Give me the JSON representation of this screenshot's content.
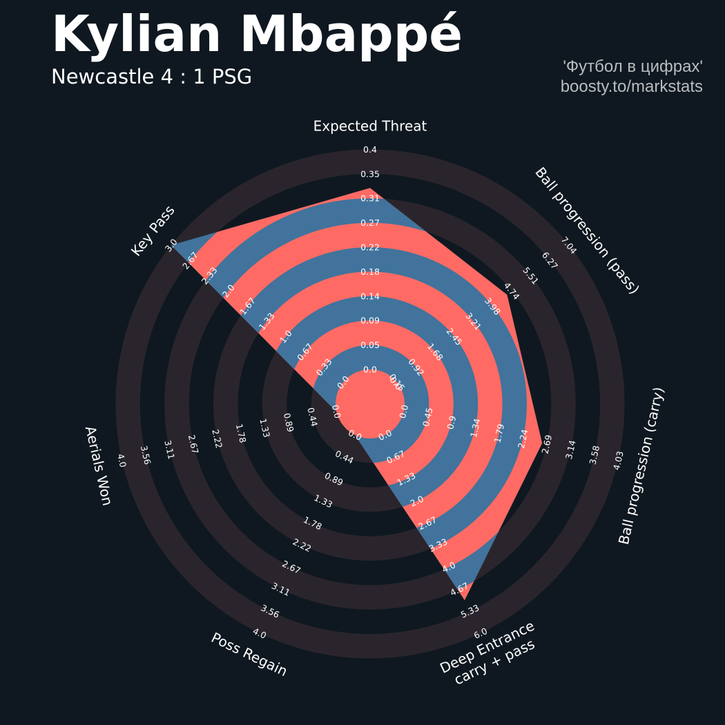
{
  "header": {
    "title": "Kylian Mbappé",
    "subtitle": "Newcastle 4 : 1 PSG",
    "credit_line1": "'Футбол в цифрах'",
    "credit_line2": "boosty.to/markstats"
  },
  "colors": {
    "background": "#0f1820",
    "ring_dark": "#2a252c",
    "ring_light": "#0f1820",
    "player_fill": "#ff6b64",
    "player_ring_alt": "#41739c",
    "text": "#ffffff"
  },
  "chart_data": {
    "type": "radar",
    "title": "Kylian Mbappé",
    "params": [
      {
        "label": [
          "Expected Threat"
        ],
        "min": 0.0,
        "max": 0.4,
        "value": 0.33,
        "ticks": [
          "0.0",
          "0.05",
          "0.09",
          "0.14",
          "0.18",
          "0.22",
          "0.27",
          "0.31",
          "0.35",
          "0.4"
        ]
      },
      {
        "label": [
          "Ball progression (pass)"
        ],
        "min": 0.0,
        "max": 7.04,
        "value": 4.5,
        "ticks": [
          "0.0",
          "0.15",
          "0.92",
          "1.68",
          "2.45",
          "3.21",
          "3.98",
          "4.74",
          "5.51",
          "6.27",
          "7.04"
        ]
      },
      {
        "label": [
          "Ball progression (carry)"
        ],
        "min": 0.0,
        "max": 4.03,
        "value": 2.6,
        "ticks": [
          "0.0",
          "0.45",
          "0.9",
          "1.34",
          "1.79",
          "2.24",
          "2.69",
          "3.14",
          "3.58",
          "4.03"
        ]
      },
      {
        "label": [
          "Deep Entrance",
          "carry + pass"
        ],
        "min": 0.0,
        "max": 6.0,
        "value": 5.0,
        "ticks": [
          "0.0",
          "0.67",
          "1.33",
          "2.0",
          "2.67",
          "3.33",
          "4.0",
          "4.67",
          "5.33",
          "6.0"
        ]
      },
      {
        "label": [
          "Poss Regain"
        ],
        "min": 0.0,
        "max": 4.0,
        "value": 0.0,
        "ticks": [
          "0.0",
          "0.44",
          "0.89",
          "1.33",
          "1.78",
          "2.22",
          "2.67",
          "3.11",
          "3.56",
          "4.0"
        ]
      },
      {
        "label": [
          "Aerials Won"
        ],
        "min": 0.0,
        "max": 4.0,
        "value": 0.0,
        "ticks": [
          "0.0",
          "0.44",
          "0.89",
          "1.33",
          "1.78",
          "2.22",
          "2.67",
          "3.11",
          "3.56",
          "4.0"
        ]
      },
      {
        "label": [
          "Key Pass"
        ],
        "min": 0.0,
        "max": 3.0,
        "value": 3.0,
        "ticks": [
          "0.0",
          "0.33",
          "0.67",
          "1.0",
          "1.33",
          "1.67",
          "2.0",
          "2.33",
          "2.67",
          "3.0"
        ]
      }
    ]
  }
}
